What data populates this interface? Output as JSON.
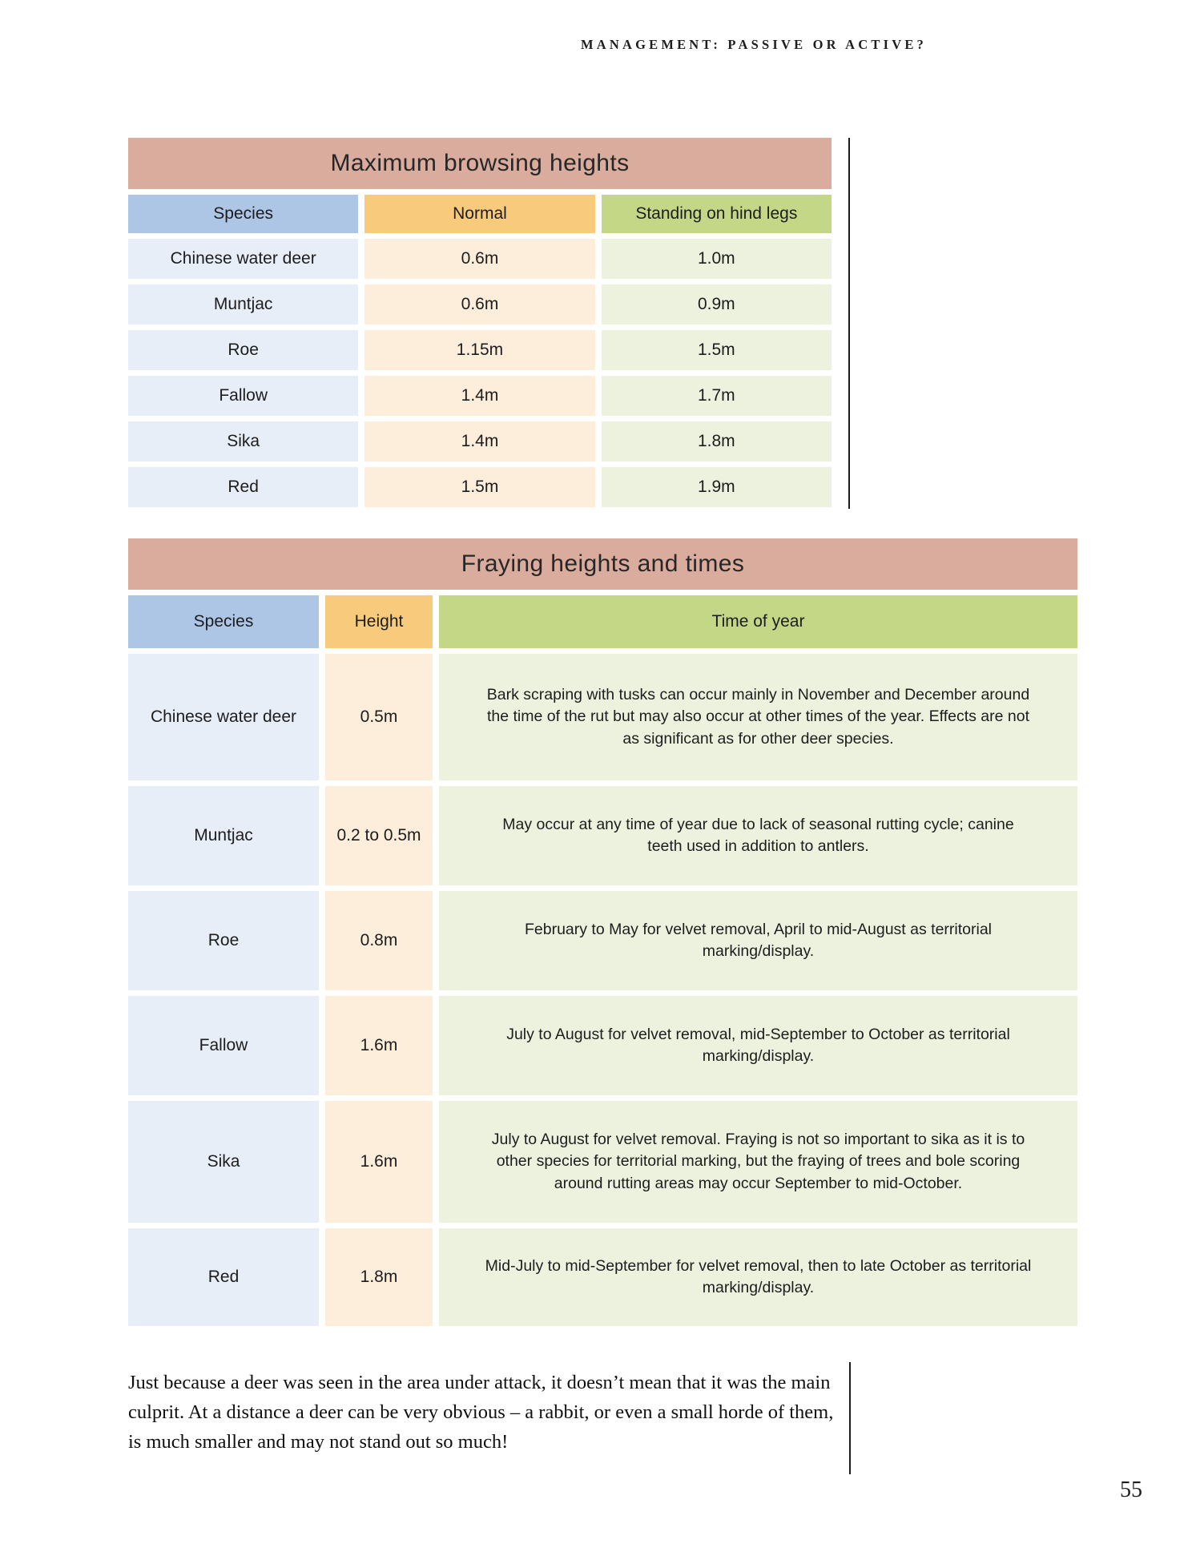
{
  "page": {
    "running_head": "MANAGEMENT: PASSIVE OR ACTIVE?",
    "page_number": "55",
    "footer_paragraph": "Just because a deer was seen in the area under attack, it doesn’t mean that it was the main culprit. At a distance a deer can be very obvious – a rabbit, or even a small horde of them, is much smaller and may not stand out so much!"
  },
  "colors": {
    "table_title_bg": "#d9ac9e",
    "species_header_bg": "#adc6e5",
    "normal_header_bg": "#f8ca7c",
    "green_header_bg": "#c4d787",
    "species_cell_bg": "#e8eef7",
    "normal_cell_bg": "#fdeedb",
    "green_cell_bg": "#edf2df",
    "text": "#1d1d1d"
  },
  "browsing_table": {
    "title": "Maximum browsing heights",
    "columns": [
      "Species",
      "Normal",
      "Standing on hind legs"
    ],
    "rows": [
      {
        "species": "Chinese water deer",
        "normal": "0.6m",
        "hind_legs": "1.0m"
      },
      {
        "species": "Muntjac",
        "normal": "0.6m",
        "hind_legs": "0.9m"
      },
      {
        "species": "Roe",
        "normal": "1.15m",
        "hind_legs": "1.5m"
      },
      {
        "species": "Fallow",
        "normal": "1.4m",
        "hind_legs": "1.7m"
      },
      {
        "species": "Sika",
        "normal": "1.4m",
        "hind_legs": "1.8m"
      },
      {
        "species": "Red",
        "normal": "1.5m",
        "hind_legs": "1.9m"
      }
    ]
  },
  "fraying_table": {
    "title": "Fraying heights and times",
    "columns": [
      "Species",
      "Height",
      "Time of year"
    ],
    "rows": [
      {
        "species": "Chinese water deer",
        "height": "0.5m",
        "time": "Bark scraping with tusks can occur mainly in November and December around the time of the rut but may also occur at other times of the year. Effects are not as significant as for other deer species."
      },
      {
        "species": "Muntjac",
        "height": "0.2 to 0.5m",
        "time": "May occur at any time of year due to lack of seasonal rutting cycle; canine teeth used in addition to antlers."
      },
      {
        "species": "Roe",
        "height": "0.8m",
        "time": "February to May for velvet removal, April to mid-August as territorial marking/display."
      },
      {
        "species": "Fallow",
        "height": "1.6m",
        "time": "July to August for velvet removal, mid-September to October as territorial marking/display."
      },
      {
        "species": "Sika",
        "height": "1.6m",
        "time": "July to August for velvet removal. Fraying is not so important to sika as it is to other species for territorial marking, but the fraying of trees and bole scoring around rutting areas may occur September to mid-October."
      },
      {
        "species": "Red",
        "height": "1.8m",
        "time": "Mid-July to mid-September for velvet removal, then to late October as territorial marking/display."
      }
    ]
  }
}
